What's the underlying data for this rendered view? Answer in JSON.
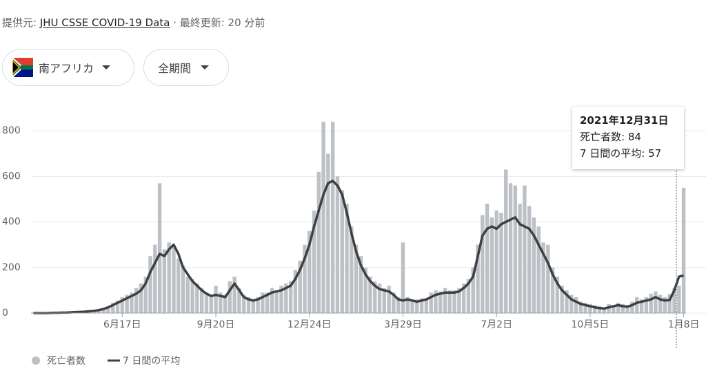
{
  "header": {
    "source_label": "提供元:",
    "source": "JHU CSSE COVID-19 Data",
    "updated": "· 最終更新: 20 分前"
  },
  "filters": [
    "南アフリカ",
    "全期間"
  ],
  "tooltip": {
    "title": "2021年12月31日",
    "lines": [
      "死亡者数: 84",
      "7 日間の平均: 57"
    ]
  },
  "chart_data": {
    "type": "bar",
    "categories": [
      null,
      null,
      null,
      null,
      null,
      null,
      null,
      null,
      null,
      null,
      null,
      null,
      null,
      null,
      null,
      null,
      null,
      null,
      null,
      "6月17日",
      null,
      null,
      null,
      null,
      null,
      null,
      null,
      null,
      null,
      null,
      null,
      null,
      null,
      null,
      null,
      null,
      null,
      null,
      null,
      "9月20日",
      null,
      null,
      null,
      null,
      null,
      null,
      null,
      null,
      null,
      null,
      null,
      null,
      null,
      null,
      null,
      null,
      null,
      null,
      null,
      "12月24日",
      null,
      null,
      null,
      null,
      null,
      null,
      null,
      null,
      null,
      null,
      null,
      null,
      null,
      null,
      null,
      null,
      null,
      null,
      null,
      "3月29日",
      null,
      null,
      null,
      null,
      null,
      null,
      null,
      null,
      null,
      null,
      null,
      null,
      null,
      null,
      null,
      null,
      null,
      null,
      null,
      "7月2日",
      null,
      null,
      null,
      null,
      null,
      null,
      null,
      null,
      null,
      null,
      null,
      null,
      null,
      null,
      null,
      null,
      null,
      null,
      null,
      "10月5日",
      null,
      null,
      null,
      null,
      null,
      null,
      null,
      null,
      null,
      null,
      null,
      null,
      null,
      null,
      null,
      null,
      null,
      null,
      null,
      "1月8日"
    ],
    "series": [
      {
        "name": "死亡者数",
        "type": "bar",
        "color": "#bdc1c6",
        "values": [
          0,
          0,
          1,
          1,
          2,
          2,
          3,
          3,
          4,
          5,
          6,
          8,
          10,
          12,
          15,
          22,
          30,
          45,
          55,
          70,
          80,
          90,
          110,
          130,
          160,
          250,
          300,
          570,
          280,
          310,
          290,
          240,
          210,
          160,
          150,
          130,
          110,
          90,
          80,
          120,
          90,
          80,
          140,
          160,
          110,
          80,
          70,
          60,
          70,
          90,
          90,
          110,
          100,
          120,
          130,
          140,
          190,
          230,
          300,
          360,
          450,
          620,
          840,
          700,
          840,
          600,
          540,
          480,
          380,
          300,
          250,
          200,
          160,
          140,
          130,
          110,
          120,
          90,
          70,
          310,
          70,
          60,
          60,
          65,
          60,
          90,
          100,
          95,
          110,
          100,
          100,
          110,
          130,
          150,
          200,
          300,
          430,
          480,
          420,
          450,
          440,
          630,
          570,
          560,
          480,
          560,
          470,
          420,
          380,
          310,
          300,
          200,
          160,
          120,
          100,
          80,
          70,
          50,
          45,
          40,
          35,
          30,
          25,
          40,
          35,
          45,
          40,
          35,
          50,
          70,
          60,
          70,
          85,
          95,
          80,
          70,
          84,
          110,
          120,
          550
        ]
      },
      {
        "name": "7 日間の平均",
        "type": "line",
        "color": "#3c4043",
        "values": [
          0,
          0,
          0,
          0,
          1,
          1,
          2,
          2,
          3,
          4,
          5,
          6,
          8,
          10,
          13,
          18,
          25,
          35,
          45,
          55,
          65,
          75,
          85,
          100,
          130,
          180,
          220,
          260,
          250,
          280,
          300,
          260,
          200,
          170,
          140,
          120,
          100,
          85,
          75,
          80,
          75,
          70,
          100,
          130,
          100,
          70,
          60,
          55,
          60,
          70,
          80,
          90,
          95,
          100,
          110,
          120,
          150,
          190,
          240,
          300,
          380,
          450,
          520,
          570,
          580,
          560,
          520,
          440,
          350,
          270,
          210,
          170,
          140,
          120,
          105,
          100,
          95,
          80,
          60,
          55,
          60,
          55,
          50,
          55,
          60,
          70,
          80,
          85,
          90,
          90,
          90,
          95,
          110,
          130,
          160,
          250,
          340,
          370,
          380,
          370,
          390,
          400,
          410,
          420,
          390,
          380,
          370,
          340,
          300,
          260,
          220,
          170,
          130,
          100,
          80,
          60,
          50,
          40,
          35,
          30,
          25,
          22,
          20,
          25,
          30,
          35,
          30,
          28,
          35,
          45,
          50,
          55,
          60,
          70,
          60,
          55,
          57,
          100,
          160,
          165
        ]
      }
    ],
    "ylim": [
      0,
      900
    ],
    "yticks": [
      0,
      200,
      400,
      600,
      800
    ],
    "grid": true
  }
}
